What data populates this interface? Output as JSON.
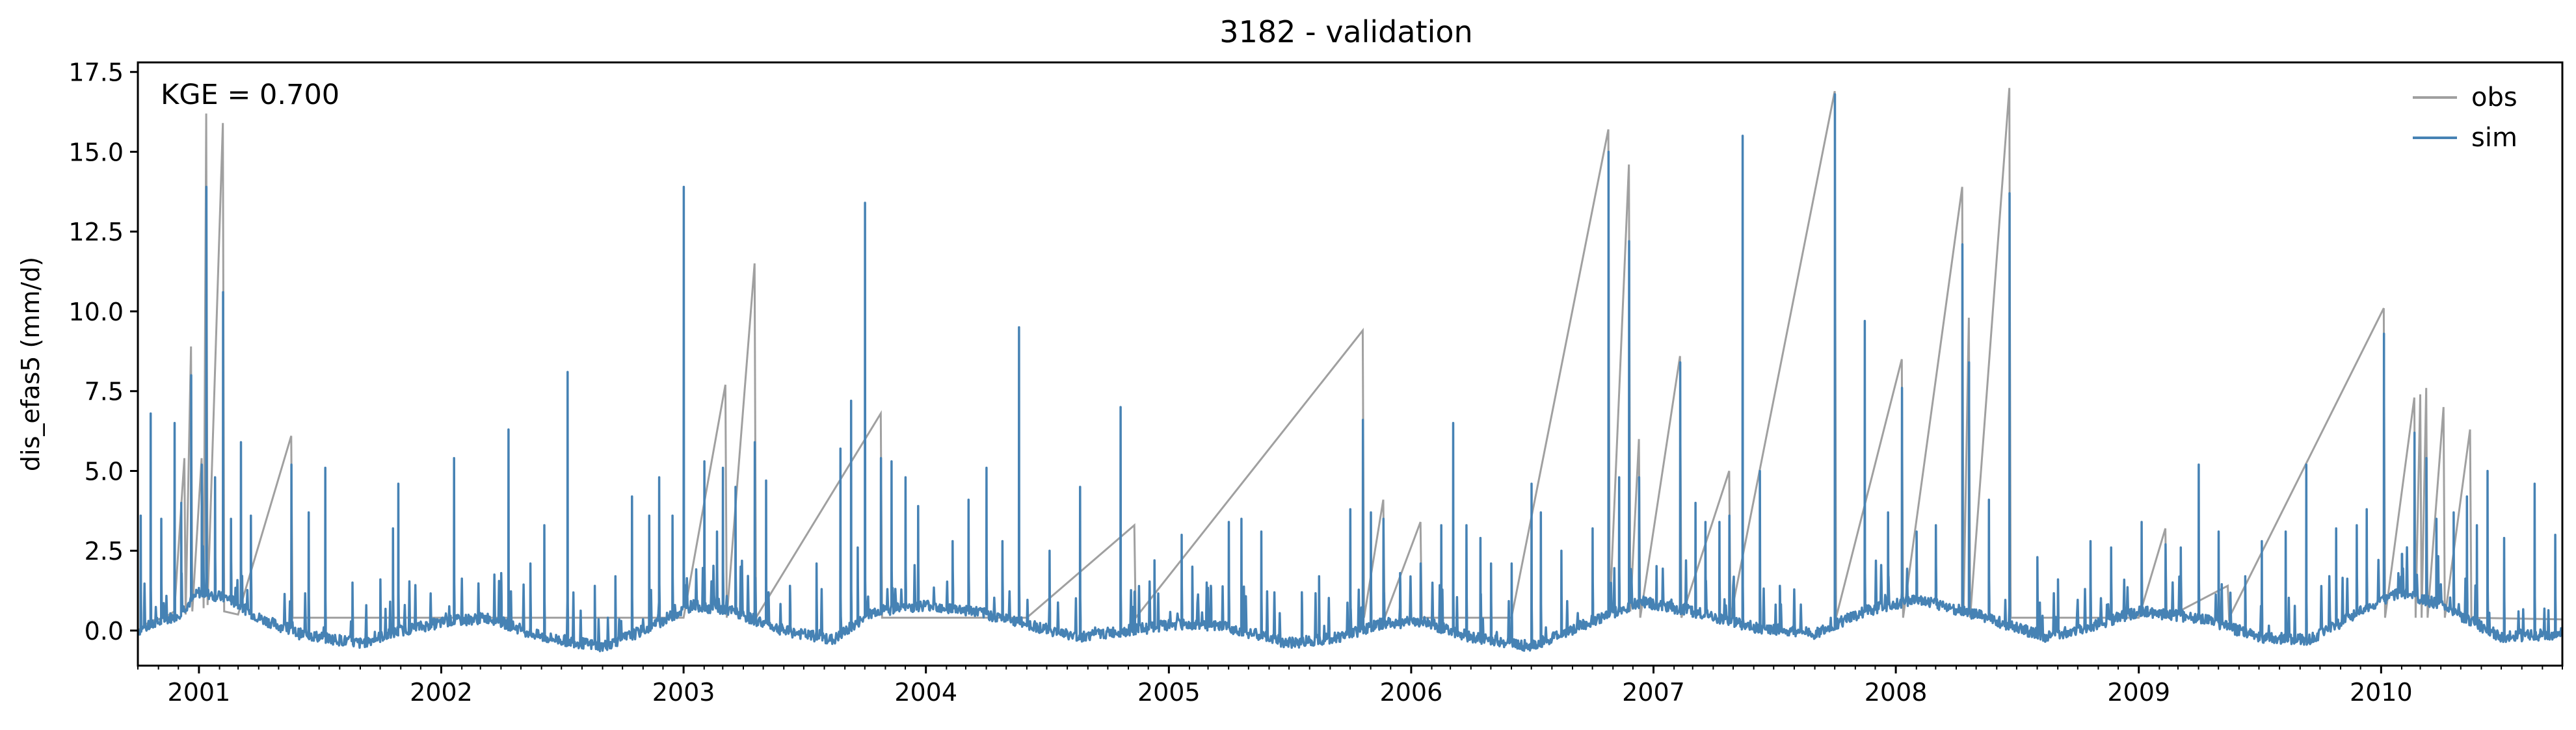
{
  "chart_data": {
    "type": "line",
    "title": "3182 - validation",
    "xlabel": "",
    "ylabel": "dis_efas5 (mm/d)",
    "annotation": "KGE = 0.700",
    "xlim": [
      "2000-10-01",
      "2010-10-01"
    ],
    "ylim": [
      -1.1,
      17.8
    ],
    "x_ticks": [
      "2001-01-01",
      "2002-01-01",
      "2003-01-01",
      "2004-01-01",
      "2005-01-01",
      "2006-01-01",
      "2007-01-01",
      "2008-01-01",
      "2009-01-01",
      "2010-01-01"
    ],
    "x_tick_labels": [
      "2001",
      "2002",
      "2003",
      "2004",
      "2005",
      "2006",
      "2007",
      "2008",
      "2009",
      "2010"
    ],
    "y_ticks": [
      0,
      2.5,
      5,
      7.5,
      10,
      12.5,
      15,
      17.5
    ],
    "y_tick_labels": [
      "0.0",
      "2.5",
      "5.0",
      "7.5",
      "10.0",
      "12.5",
      "15.0",
      "17.5"
    ],
    "grid": false,
    "legend_position": "top-right",
    "series": [
      {
        "name": "obs",
        "color": "#a0a0a0",
        "baseline": 0.4,
        "points": [
          [
            "2000-10-01",
            0.0
          ],
          [
            "2000-10-20",
            0.3
          ],
          [
            "2000-11-10",
            0.4
          ],
          [
            "2000-11-25",
            0.6
          ],
          [
            "2000-12-10",
            5.4
          ],
          [
            "2000-12-12",
            0.5
          ],
          [
            "2000-12-20",
            8.9
          ],
          [
            "2000-12-22",
            0.6
          ],
          [
            "2001-01-05",
            5.4
          ],
          [
            "2001-01-08",
            0.7
          ],
          [
            "2001-01-12",
            16.2
          ],
          [
            "2001-01-14",
            0.8
          ],
          [
            "2001-02-06",
            15.9
          ],
          [
            "2001-02-08",
            0.6
          ],
          [
            "2001-03-01",
            0.5
          ],
          [
            "2001-05-20",
            6.1
          ],
          [
            "2001-05-22",
            0.4
          ],
          [
            "2002-01-01",
            0.4
          ],
          [
            "2003-01-01",
            0.4
          ],
          [
            "2003-03-05",
            7.7
          ],
          [
            "2003-03-07",
            0.4
          ],
          [
            "2003-04-18",
            11.5
          ],
          [
            "2003-04-20",
            0.4
          ],
          [
            "2003-10-25",
            6.8
          ],
          [
            "2003-10-27",
            0.4
          ],
          [
            "2004-06-01",
            0.4
          ],
          [
            "2004-11-10",
            3.3
          ],
          [
            "2004-11-12",
            0.4
          ],
          [
            "2005-10-20",
            9.4
          ],
          [
            "2005-10-22",
            0.4
          ],
          [
            "2005-11-20",
            4.1
          ],
          [
            "2005-11-22",
            0.4
          ],
          [
            "2006-01-15",
            3.4
          ],
          [
            "2006-01-17",
            0.4
          ],
          [
            "2006-06-01",
            0.4
          ],
          [
            "2006-10-25",
            15.7
          ],
          [
            "2006-10-27",
            0.5
          ],
          [
            "2006-11-25",
            14.6
          ],
          [
            "2006-11-27",
            0.6
          ],
          [
            "2006-12-10",
            6.0
          ],
          [
            "2006-12-12",
            0.4
          ],
          [
            "2007-02-10",
            8.6
          ],
          [
            "2007-02-12",
            0.4
          ],
          [
            "2007-04-25",
            5.0
          ],
          [
            "2007-04-27",
            0.4
          ],
          [
            "2007-10-01",
            16.9
          ],
          [
            "2007-10-03",
            0.4
          ],
          [
            "2008-01-10",
            8.5
          ],
          [
            "2008-01-12",
            0.4
          ],
          [
            "2008-04-10",
            13.9
          ],
          [
            "2008-04-12",
            0.5
          ],
          [
            "2008-04-20",
            9.8
          ],
          [
            "2008-04-22",
            0.4
          ],
          [
            "2008-06-20",
            17.0
          ],
          [
            "2008-06-22",
            0.4
          ],
          [
            "2009-01-01",
            0.4
          ],
          [
            "2009-02-10",
            3.2
          ],
          [
            "2009-02-12",
            0.4
          ],
          [
            "2009-05-15",
            1.4
          ],
          [
            "2009-05-17",
            0.4
          ],
          [
            "2010-01-05",
            10.1
          ],
          [
            "2010-01-07",
            0.4
          ],
          [
            "2010-02-20",
            7.3
          ],
          [
            "2010-02-22",
            0.4
          ],
          [
            "2010-03-01",
            7.4
          ],
          [
            "2010-03-03",
            0.4
          ],
          [
            "2010-03-10",
            7.6
          ],
          [
            "2010-03-12",
            0.4
          ],
          [
            "2010-04-05",
            7.0
          ],
          [
            "2010-04-07",
            0.4
          ],
          [
            "2010-05-15",
            6.3
          ],
          [
            "2010-05-17",
            0.4
          ],
          [
            "2010-10-01",
            0.35
          ]
        ]
      },
      {
        "name": "sim",
        "color": "#4682b4",
        "base": [
          [
            "2000-10-01",
            0.0
          ],
          [
            "2000-12-01",
            0.5
          ],
          [
            "2001-01-01",
            1.2
          ],
          [
            "2001-02-15",
            1.0
          ],
          [
            "2001-04-01",
            0.4
          ],
          [
            "2001-06-01",
            -0.1
          ],
          [
            "2001-09-01",
            -0.4
          ],
          [
            "2001-11-01",
            0.0
          ],
          [
            "2002-01-15",
            0.3
          ],
          [
            "2002-03-15",
            0.4
          ],
          [
            "2002-06-01",
            -0.2
          ],
          [
            "2002-09-01",
            -0.5
          ],
          [
            "2002-11-01",
            0.0
          ],
          [
            "2003-01-15",
            0.8
          ],
          [
            "2003-03-15",
            0.6
          ],
          [
            "2003-06-01",
            0.0
          ],
          [
            "2003-08-15",
            -0.3
          ],
          [
            "2003-10-15",
            0.6
          ],
          [
            "2004-01-01",
            0.8
          ],
          [
            "2004-03-15",
            0.6
          ],
          [
            "2004-06-01",
            0.2
          ],
          [
            "2004-08-15",
            -0.2
          ],
          [
            "2004-11-01",
            0.0
          ],
          [
            "2005-01-15",
            0.2
          ],
          [
            "2005-04-01",
            0.1
          ],
          [
            "2005-07-01",
            -0.4
          ],
          [
            "2005-09-15",
            -0.2
          ],
          [
            "2005-11-15",
            0.2
          ],
          [
            "2006-01-15",
            0.3
          ],
          [
            "2006-04-01",
            -0.2
          ],
          [
            "2006-07-01",
            -0.5
          ],
          [
            "2006-10-01",
            0.3
          ],
          [
            "2006-12-15",
            0.9
          ],
          [
            "2007-03-01",
            0.6
          ],
          [
            "2007-06-01",
            0.1
          ],
          [
            "2007-09-01",
            -0.1
          ],
          [
            "2007-11-15",
            0.6
          ],
          [
            "2008-02-01",
            1.0
          ],
          [
            "2008-05-01",
            0.5
          ],
          [
            "2008-08-15",
            -0.2
          ],
          [
            "2008-10-15",
            0.1
          ],
          [
            "2009-01-01",
            0.6
          ],
          [
            "2009-04-01",
            0.4
          ],
          [
            "2009-07-01",
            -0.2
          ],
          [
            "2009-09-15",
            -0.3
          ],
          [
            "2009-12-01",
            0.6
          ],
          [
            "2010-02-01",
            1.2
          ],
          [
            "2010-04-01",
            0.8
          ],
          [
            "2010-07-01",
            -0.2
          ],
          [
            "2010-10-01",
            -0.1
          ]
        ],
        "spikes": [
          [
            "2000-10-05",
            3.6
          ],
          [
            "2000-10-20",
            6.8
          ],
          [
            "2000-11-05",
            3.5
          ],
          [
            "2000-11-25",
            6.5
          ],
          [
            "2000-12-05",
            4.0
          ],
          [
            "2000-12-20",
            8.0
          ],
          [
            "2001-01-05",
            5.2
          ],
          [
            "2001-01-12",
            13.9
          ],
          [
            "2001-01-25",
            4.8
          ],
          [
            "2001-02-06",
            10.6
          ],
          [
            "2001-02-18",
            3.5
          ],
          [
            "2001-03-05",
            5.9
          ],
          [
            "2001-03-20",
            3.6
          ],
          [
            "2001-05-20",
            5.2
          ],
          [
            "2001-06-15",
            3.7
          ],
          [
            "2001-07-10",
            5.1
          ],
          [
            "2001-08-20",
            1.5
          ],
          [
            "2001-10-01",
            1.6
          ],
          [
            "2001-10-20",
            3.2
          ],
          [
            "2001-10-28",
            4.6
          ],
          [
            "2002-01-20",
            5.4
          ],
          [
            "2002-04-01",
            1.8
          ],
          [
            "2002-04-12",
            6.3
          ],
          [
            "2002-05-15",
            2.1
          ],
          [
            "2002-06-05",
            3.3
          ],
          [
            "2002-07-10",
            8.1
          ],
          [
            "2002-08-20",
            1.4
          ],
          [
            "2002-09-20",
            1.7
          ],
          [
            "2002-10-15",
            4.2
          ],
          [
            "2002-11-10",
            3.6
          ],
          [
            "2002-11-25",
            4.8
          ],
          [
            "2002-12-15",
            3.6
          ],
          [
            "2003-01-01",
            13.9
          ],
          [
            "2003-02-01",
            5.3
          ],
          [
            "2003-02-20",
            3.1
          ],
          [
            "2003-03-01",
            5.1
          ],
          [
            "2003-03-20",
            4.5
          ],
          [
            "2003-04-18",
            5.9
          ],
          [
            "2003-05-05",
            4.7
          ],
          [
            "2003-06-10",
            1.4
          ],
          [
            "2003-07-20",
            2.1
          ],
          [
            "2003-08-25",
            5.7
          ],
          [
            "2003-09-10",
            7.2
          ],
          [
            "2003-09-20",
            2.6
          ],
          [
            "2003-10-01",
            13.4
          ],
          [
            "2003-10-25",
            5.4
          ],
          [
            "2003-11-10",
            5.3
          ],
          [
            "2003-12-01",
            4.8
          ],
          [
            "2003-12-20",
            3.9
          ],
          [
            "2004-02-10",
            2.8
          ],
          [
            "2004-03-05",
            4.1
          ],
          [
            "2004-04-01",
            5.1
          ],
          [
            "2004-04-25",
            2.8
          ],
          [
            "2004-05-20",
            9.5
          ],
          [
            "2004-07-05",
            2.5
          ],
          [
            "2004-08-20",
            4.5
          ],
          [
            "2004-10-20",
            7.0
          ],
          [
            "2004-11-10",
            1.2
          ],
          [
            "2004-12-10",
            2.2
          ],
          [
            "2005-01-20",
            3.0
          ],
          [
            "2005-02-05",
            2.0
          ],
          [
            "2005-03-05",
            1.4
          ],
          [
            "2005-04-01",
            3.4
          ],
          [
            "2005-04-20",
            3.5
          ],
          [
            "2005-05-20",
            3.1
          ],
          [
            "2005-07-20",
            1.2
          ],
          [
            "2005-08-15",
            1.7
          ],
          [
            "2005-10-01",
            3.8
          ],
          [
            "2005-10-20",
            6.6
          ],
          [
            "2005-11-01",
            3.7
          ],
          [
            "2005-11-20",
            3.5
          ],
          [
            "2005-12-15",
            1.8
          ],
          [
            "2006-01-15",
            2.1
          ],
          [
            "2006-02-15",
            3.3
          ],
          [
            "2006-03-05",
            6.5
          ],
          [
            "2006-03-25",
            3.3
          ],
          [
            "2006-04-15",
            2.9
          ],
          [
            "2006-05-01",
            2.1
          ],
          [
            "2006-06-01",
            2.1
          ],
          [
            "2006-07-01",
            4.6
          ],
          [
            "2006-07-15",
            3.7
          ],
          [
            "2006-08-15",
            2.5
          ],
          [
            "2006-10-01",
            3.2
          ],
          [
            "2006-10-25",
            15.0
          ],
          [
            "2006-11-10",
            4.8
          ],
          [
            "2006-11-25",
            12.2
          ],
          [
            "2006-12-10",
            4.8
          ],
          [
            "2007-01-05",
            1.4
          ],
          [
            "2007-02-10",
            8.4
          ],
          [
            "2007-03-05",
            4.0
          ],
          [
            "2007-03-20",
            3.4
          ],
          [
            "2007-04-10",
            3.4
          ],
          [
            "2007-04-25",
            3.6
          ],
          [
            "2007-05-15",
            15.5
          ],
          [
            "2007-06-10",
            5.0
          ],
          [
            "2007-07-10",
            1.4
          ],
          [
            "2007-10-01",
            16.8
          ],
          [
            "2007-11-15",
            9.7
          ],
          [
            "2007-12-20",
            3.7
          ],
          [
            "2008-01-10",
            7.6
          ],
          [
            "2008-02-01",
            3.1
          ],
          [
            "2008-03-01",
            3.3
          ],
          [
            "2008-04-10",
            12.1
          ],
          [
            "2008-04-20",
            8.4
          ],
          [
            "2008-05-20",
            4.1
          ],
          [
            "2008-06-20",
            13.7
          ],
          [
            "2008-08-01",
            2.3
          ],
          [
            "2008-09-01",
            1.6
          ],
          [
            "2008-10-20",
            2.8
          ],
          [
            "2008-11-20",
            2.6
          ],
          [
            "2009-01-05",
            3.4
          ],
          [
            "2009-02-10",
            2.7
          ],
          [
            "2009-03-05",
            2.6
          ],
          [
            "2009-04-01",
            5.2
          ],
          [
            "2009-05-01",
            3.1
          ],
          [
            "2009-06-10",
            1.7
          ],
          [
            "2009-07-05",
            2.8
          ],
          [
            "2009-08-10",
            3.1
          ],
          [
            "2009-09-10",
            5.2
          ],
          [
            "2009-10-25",
            3.2
          ],
          [
            "2009-11-25",
            3.3
          ],
          [
            "2009-12-10",
            3.8
          ],
          [
            "2010-01-05",
            9.3
          ],
          [
            "2010-02-01",
            2.4
          ],
          [
            "2010-02-20",
            6.2
          ],
          [
            "2010-03-10",
            5.4
          ],
          [
            "2010-03-25",
            3.5
          ],
          [
            "2010-04-20",
            3.7
          ],
          [
            "2010-05-10",
            4.2
          ],
          [
            "2010-05-25",
            3.3
          ],
          [
            "2010-06-10",
            5.0
          ],
          [
            "2010-07-05",
            2.9
          ],
          [
            "2010-08-20",
            4.6
          ],
          [
            "2010-09-20",
            3.0
          ]
        ]
      }
    ]
  }
}
